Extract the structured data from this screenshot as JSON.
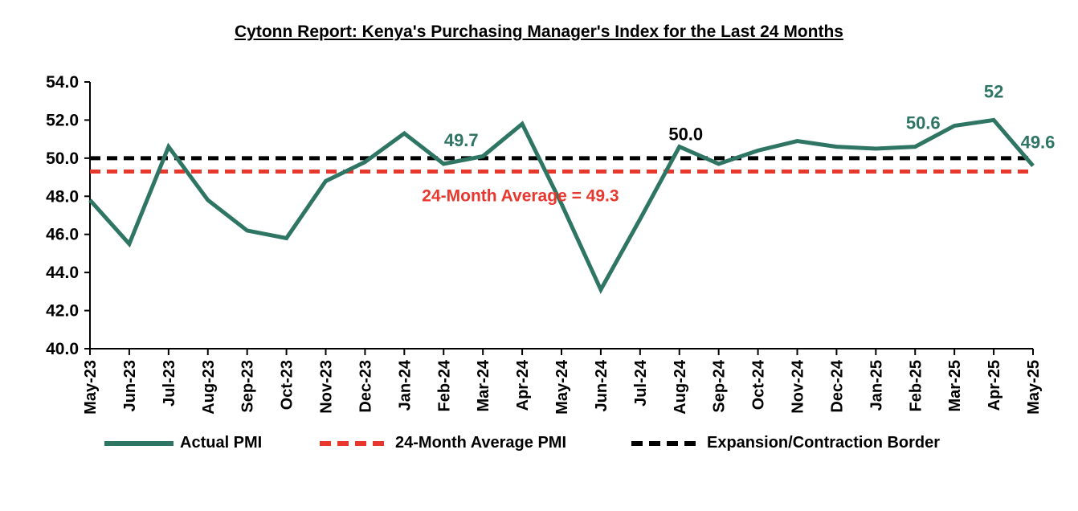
{
  "title": "Cytonn Report: Kenya's Purchasing Manager's Index for the Last 24 Months",
  "colors": {
    "actual": "#2e7564",
    "average": "#e8382d",
    "border": "#000000",
    "average_label": "#e8382d",
    "point_label": "#2e7564"
  },
  "legend": {
    "actual": "Actual PMI",
    "average": "24-Month Average PMI",
    "border": "Expansion/Contraction Border"
  },
  "chart_data": {
    "type": "line",
    "title": "Cytonn Report: Kenya's Purchasing Manager's Index for the Last 24 Months",
    "categories": [
      "May-23",
      "Jun-23",
      "Jul-23",
      "Aug-23",
      "Sep-23",
      "Oct-23",
      "Nov-23",
      "Dec-23",
      "Jan-24",
      "Feb-24",
      "Mar-24",
      "Apr-24",
      "May-24",
      "Jun-24",
      "Jul-24",
      "Aug-24",
      "Sep-24",
      "Oct-24",
      "Nov-24",
      "Dec-24",
      "Jan-25",
      "Feb-25",
      "Mar-25",
      "Apr-25",
      "May-25"
    ],
    "series": [
      {
        "name": "Actual PMI",
        "values": [
          47.8,
          45.5,
          50.6,
          47.8,
          46.2,
          45.8,
          48.8,
          49.8,
          51.3,
          49.7,
          50.1,
          51.8,
          47.6,
          43.1,
          46.8,
          50.6,
          49.7,
          50.4,
          50.9,
          50.6,
          50.5,
          50.6,
          51.7,
          52.0,
          49.6
        ]
      },
      {
        "name": "24-Month Average PMI",
        "value": 49.3
      },
      {
        "name": "Expansion/Contraction Border",
        "value": 50.0
      }
    ],
    "ylim": [
      40.0,
      54.0
    ],
    "yticks": [
      "40.0",
      "42.0",
      "44.0",
      "46.0",
      "48.0",
      "50.0",
      "52.0",
      "54.0"
    ],
    "grid": false,
    "legend_position": "bottom",
    "annotations": [
      {
        "category": "Feb-24",
        "text": "49.7",
        "color": "point"
      },
      {
        "category": "Aug-24",
        "text": "50.0",
        "color": "black"
      },
      {
        "category": "Feb-25",
        "text": "50.6",
        "color": "point"
      },
      {
        "category": "Apr-25",
        "text": "52",
        "color": "point"
      },
      {
        "category": "May-25",
        "text": "49.6",
        "color": "point"
      },
      {
        "category": "Jun-24",
        "text": "24-Month Average = 49.3",
        "color": "average"
      }
    ]
  }
}
